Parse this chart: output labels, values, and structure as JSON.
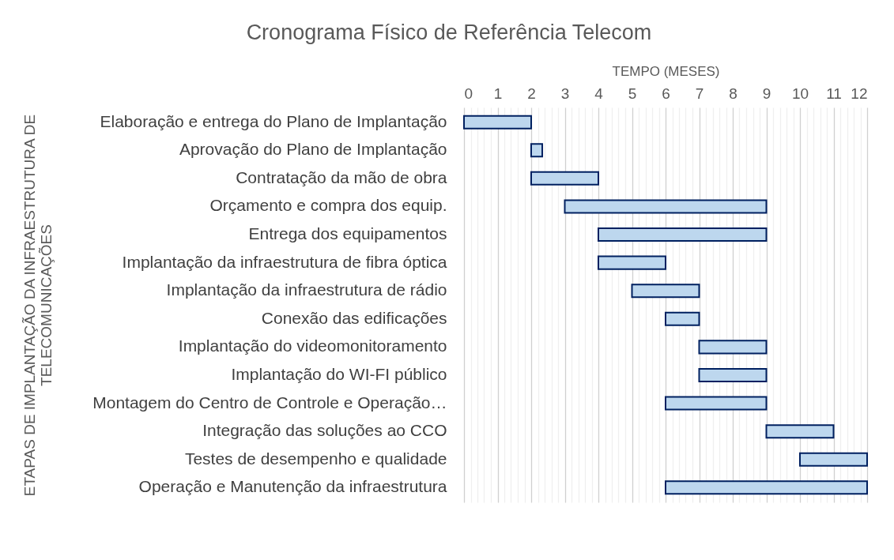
{
  "chart_data": {
    "type": "bar",
    "orientation": "horizontal",
    "title": "Cronograma Físico de Referência Telecom",
    "xlabel": "TEMPO (MESES)",
    "ylabel": "ETAPAS DE IMPLANTAÇÃO DA INFRAESTRUTURA DE TELECOMUNICAÇÕES",
    "categories": [
      "Elaboração e entrega do Plano de Implantação",
      "Aprovação do Plano de Implantação",
      "Contratação da mão de obra",
      "Orçamento e compra dos equip.",
      "Entrega dos equipamentos",
      "Implantação da infraestrutura de fibra óptica",
      "Implantação da infraestrutura de rádio",
      "Conexão das edificações",
      "Implantação do videomonitoramento",
      "Implantação do WI-FI público",
      "Montagem do Centro de Controle e Operação…",
      "Integração das soluções ao CCO",
      "Testes de desempenho e qualidade",
      "Operação e Manutenção da infraestrutura"
    ],
    "base": [
      0,
      2,
      2,
      3,
      4,
      4,
      5,
      6,
      7,
      7,
      6,
      9,
      10,
      6
    ],
    "values": [
      2,
      0.33,
      2,
      6,
      5,
      2,
      2,
      1,
      2,
      2,
      3,
      2,
      2,
      6
    ],
    "color": "#bdd7ee",
    "xlim": [
      0,
      12
    ],
    "xticks": [
      0,
      {
        "value": 0.2,
        "label": null
      },
      {
        "value": 0.4,
        "label": null
      },
      {
        "value": 0.6,
        "label": null
      },
      {
        "value": 0.8,
        "label": null
      },
      1,
      {
        "value": 1.2,
        "label": null
      },
      {
        "value": 1.4,
        "label": null
      },
      {
        "value": 1.6,
        "label": null
      },
      {
        "value": 1.8,
        "label": null
      },
      2,
      {
        "value": 2.2,
        "label": null
      },
      {
        "value": 2.4,
        "label": null
      },
      {
        "value": 2.6,
        "label": null
      },
      {
        "value": 2.8,
        "label": null
      },
      3,
      {
        "value": 3.2,
        "label": null
      },
      {
        "value": 3.4,
        "label": null
      },
      {
        "value": 3.6,
        "label": null
      },
      {
        "value": 3.8,
        "label": null
      },
      4,
      {
        "value": 4.2,
        "label": null
      },
      {
        "value": 4.4,
        "label": null
      },
      {
        "value": 4.6,
        "label": null
      },
      {
        "value": 4.8,
        "label": null
      },
      5,
      {
        "value": 5.2,
        "label": null
      },
      {
        "value": 5.4,
        "label": null
      },
      {
        "value": 5.6,
        "label": null
      },
      {
        "value": 5.8,
        "label": null
      },
      6,
      {
        "value": 6.2,
        "label": null
      },
      {
        "value": 6.4,
        "label": null
      },
      {
        "value": 6.6,
        "label": null
      },
      {
        "value": 6.8,
        "label": null
      },
      7,
      {
        "value": 7.2,
        "label": null
      },
      {
        "value": 7.4,
        "label": null
      },
      {
        "value": 7.6,
        "label": null
      },
      {
        "value": 7.8,
        "label": null
      },
      8,
      {
        "value": 8.2,
        "label": null
      },
      {
        "value": 8.4,
        "label": null
      },
      {
        "value": 8.6,
        "label": null
      },
      {
        "value": 8.8,
        "label": null
      },
      9,
      {
        "value": 9.2,
        "label": null
      },
      {
        "value": 9.4,
        "label": null
      },
      {
        "value": 9.6,
        "label": null
      },
      {
        "value": 9.8,
        "label": null
      },
      10,
      {
        "value": 10.2,
        "label": null
      },
      {
        "value": 10.4,
        "label": null
      },
      {
        "value": 10.6,
        "label": null
      },
      {
        "value": 10.8,
        "label": null
      },
      11,
      {
        "value": 11.2,
        "label": null
      },
      {
        "value": 11.4,
        "label": null
      },
      {
        "value": 11.6,
        "label": null
      },
      {
        "value": 11.8,
        "label": null
      },
      12
    ],
    "grid": true
  }
}
